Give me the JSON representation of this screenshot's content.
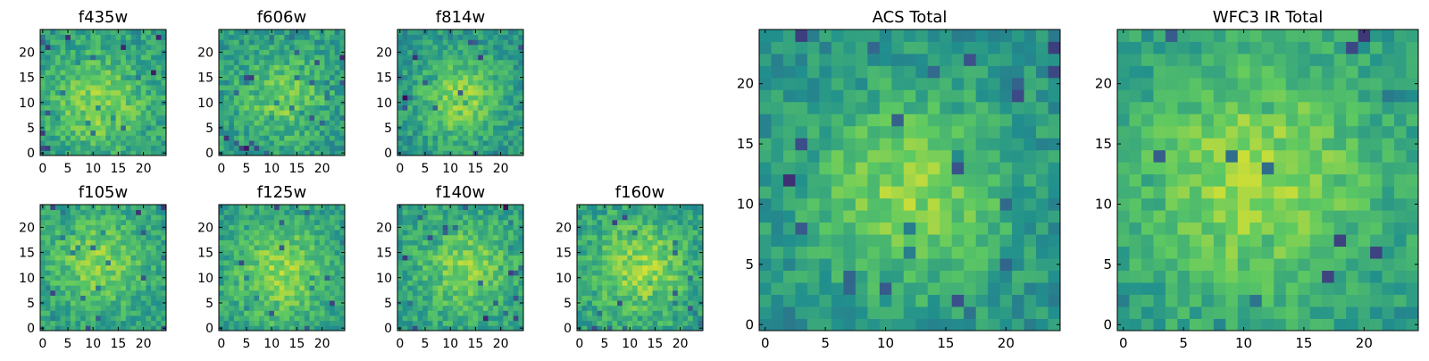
{
  "figure": {
    "colormap": "viridis",
    "colormap_stops": [
      "#440154",
      "#3b528b",
      "#21908d",
      "#5dc962",
      "#fde725"
    ]
  },
  "chart_data": [
    {
      "type": "heatmap",
      "title": "f435w",
      "grid_size": [
        25,
        25
      ],
      "xlim": [
        0,
        24
      ],
      "ylim": [
        0,
        24
      ],
      "xticks": [
        0,
        5,
        10,
        15,
        20
      ],
      "yticks": [
        0,
        5,
        10,
        15,
        20
      ],
      "grid": false,
      "seed": 11,
      "peak": [
        11,
        10
      ],
      "sigma": 7,
      "amplitude": 0.25,
      "base": 0.55,
      "noise": 0.26
    },
    {
      "type": "heatmap",
      "title": "f606w",
      "grid_size": [
        25,
        25
      ],
      "xlim": [
        0,
        24
      ],
      "ylim": [
        0,
        24
      ],
      "xticks": [
        0,
        5,
        10,
        15,
        20
      ],
      "yticks": [
        0,
        5,
        10,
        15,
        20
      ],
      "grid": false,
      "seed": 23,
      "peak": [
        12,
        11
      ],
      "sigma": 6,
      "amplitude": 0.22,
      "base": 0.55,
      "noise": 0.27
    },
    {
      "type": "heatmap",
      "title": "f814w",
      "grid_size": [
        25,
        25
      ],
      "xlim": [
        0,
        24
      ],
      "ylim": [
        0,
        24
      ],
      "xticks": [
        0,
        5,
        10,
        15,
        20
      ],
      "yticks": [
        0,
        5,
        10,
        15,
        20
      ],
      "grid": false,
      "seed": 37,
      "peak": [
        12,
        11
      ],
      "sigma": 6,
      "amplitude": 0.3,
      "base": 0.52,
      "noise": 0.24
    },
    {
      "type": "heatmap",
      "title": "f105w",
      "grid_size": [
        25,
        25
      ],
      "xlim": [
        0,
        24
      ],
      "ylim": [
        0,
        24
      ],
      "xticks": [
        0,
        5,
        10,
        15,
        20
      ],
      "yticks": [
        0,
        5,
        10,
        15,
        20
      ],
      "grid": false,
      "seed": 41,
      "peak": [
        11,
        13
      ],
      "sigma": 7,
      "amplitude": 0.25,
      "base": 0.55,
      "noise": 0.24
    },
    {
      "type": "heatmap",
      "title": "f125w",
      "grid_size": [
        25,
        25
      ],
      "xlim": [
        0,
        24
      ],
      "ylim": [
        0,
        24
      ],
      "xticks": [
        0,
        5,
        10,
        15,
        20
      ],
      "yticks": [
        0,
        5,
        10,
        15,
        20
      ],
      "grid": false,
      "seed": 53,
      "peak": [
        12,
        11
      ],
      "sigma": 7,
      "amplitude": 0.28,
      "base": 0.55,
      "noise": 0.24
    },
    {
      "type": "heatmap",
      "title": "f140w",
      "grid_size": [
        25,
        25
      ],
      "xlim": [
        0,
        24
      ],
      "ylim": [
        0,
        24
      ],
      "xticks": [
        0,
        5,
        10,
        15,
        20
      ],
      "yticks": [
        0,
        5,
        10,
        15,
        20
      ],
      "grid": false,
      "seed": 67,
      "peak": [
        13,
        12
      ],
      "sigma": 7,
      "amplitude": 0.25,
      "base": 0.55,
      "noise": 0.24
    },
    {
      "type": "heatmap",
      "title": "f160w",
      "grid_size": [
        25,
        25
      ],
      "xlim": [
        0,
        24
      ],
      "ylim": [
        0,
        24
      ],
      "xticks": [
        0,
        5,
        10,
        15,
        20
      ],
      "yticks": [
        0,
        5,
        10,
        15,
        20
      ],
      "grid": false,
      "seed": 79,
      "peak": [
        12,
        12
      ],
      "sigma": 7,
      "amplitude": 0.28,
      "base": 0.55,
      "noise": 0.26
    },
    {
      "type": "heatmap",
      "title": "ACS Total",
      "grid_size": [
        25,
        25
      ],
      "xlim": [
        0,
        24
      ],
      "ylim": [
        0,
        24
      ],
      "xticks": [
        0,
        5,
        10,
        15,
        20
      ],
      "yticks": [
        0,
        5,
        10,
        15,
        20
      ],
      "grid": false,
      "seed": 97,
      "peak": [
        12,
        11
      ],
      "sigma": 6,
      "amplitude": 0.32,
      "base": 0.5,
      "noise": 0.22
    },
    {
      "type": "heatmap",
      "title": "WFC3 IR Total",
      "grid_size": [
        25,
        25
      ],
      "xlim": [
        0,
        24
      ],
      "ylim": [
        0,
        24
      ],
      "xticks": [
        0,
        5,
        10,
        15,
        20
      ],
      "yticks": [
        0,
        5,
        10,
        15,
        20
      ],
      "grid": false,
      "seed": 113,
      "peak": [
        11,
        12
      ],
      "sigma": 7,
      "amplitude": 0.3,
      "base": 0.55,
      "noise": 0.2
    }
  ]
}
